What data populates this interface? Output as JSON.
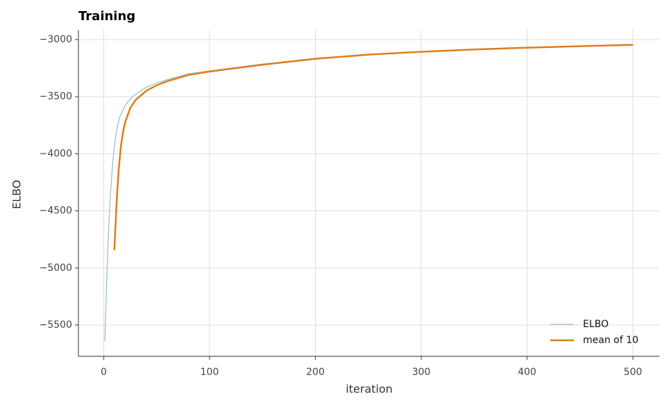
{
  "chart_data": {
    "type": "line",
    "title": "Training",
    "xlabel": "iteration",
    "ylabel": "ELBO",
    "series": [
      {
        "name": "ELBO",
        "color": "#9bbfcc",
        "x": [
          1,
          2,
          3,
          4,
          5,
          6,
          8,
          10,
          12,
          15,
          20,
          25,
          30,
          40,
          50,
          60,
          80,
          100,
          150,
          200,
          250,
          300,
          350,
          400,
          450,
          500
        ],
        "values": [
          -5640,
          -5350,
          -5050,
          -4800,
          -4580,
          -4400,
          -4130,
          -3930,
          -3800,
          -3680,
          -3580,
          -3520,
          -3480,
          -3420,
          -3380,
          -3350,
          -3300,
          -3275,
          -3215,
          -3165,
          -3130,
          -3105,
          -3085,
          -3070,
          -3057,
          -3045
        ]
      },
      {
        "name": "mean of 10",
        "color": "#e07b1a",
        "x": [
          10,
          12,
          14,
          16,
          18,
          20,
          25,
          30,
          40,
          50,
          60,
          80,
          100,
          150,
          200,
          250,
          300,
          350,
          400,
          450,
          500
        ],
        "values": [
          -4845,
          -4450,
          -4150,
          -3950,
          -3820,
          -3730,
          -3600,
          -3530,
          -3450,
          -3400,
          -3365,
          -3310,
          -3280,
          -3220,
          -3168,
          -3132,
          -3107,
          -3087,
          -3071,
          -3058,
          -3046
        ]
      }
    ],
    "xlim": [
      -23.95,
      524.95
    ],
    "xticks": [
      0,
      100,
      200,
      300,
      400,
      500
    ],
    "ylim": [
      -5774,
      -2915
    ],
    "yticks": [
      {
        "value": -5500,
        "label": "−5500"
      },
      {
        "value": -5000,
        "label": "−5000"
      },
      {
        "value": -4500,
        "label": "−4500"
      },
      {
        "value": -4000,
        "label": "−4000"
      },
      {
        "value": -3500,
        "label": "−3500"
      },
      {
        "value": -3000,
        "label": "−3000"
      }
    ],
    "grid": true,
    "legend": "lower right"
  }
}
